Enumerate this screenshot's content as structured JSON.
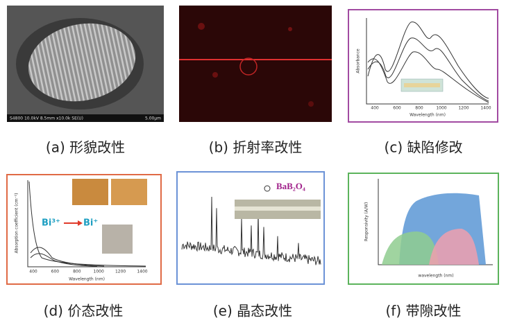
{
  "panels": [
    {
      "caption": "(a) 形貌改性",
      "info": "S4800 10.0kV 8.5mm x10.0k SE(U)",
      "scale_bar": "5.00μm"
    },
    {
      "caption": "(b) 折射率改性"
    },
    {
      "caption": "(c) 缺陷修改",
      "x_label": "Wavelength (nm)",
      "y_label": "Absorbance",
      "x_ticks": [
        "400",
        "600",
        "800",
        "1000",
        "1200",
        "1400"
      ]
    },
    {
      "caption": "(d) 价态改性",
      "x_label": "Wavelength (nm)",
      "y_label": "Absorption coefficient (cm⁻¹)",
      "ion_from": "Bi³⁺",
      "ion_to": "Bi⁺",
      "x_ticks": [
        "400",
        "600",
        "800",
        "1000",
        "1200",
        "1400"
      ]
    },
    {
      "caption": "(e) 晶态改性",
      "label": "BaB₂O₄"
    },
    {
      "caption": "(f) 带隙改性",
      "x_label": "wavelength (nm)",
      "y_label": "Responsivity (A/W)"
    }
  ]
}
